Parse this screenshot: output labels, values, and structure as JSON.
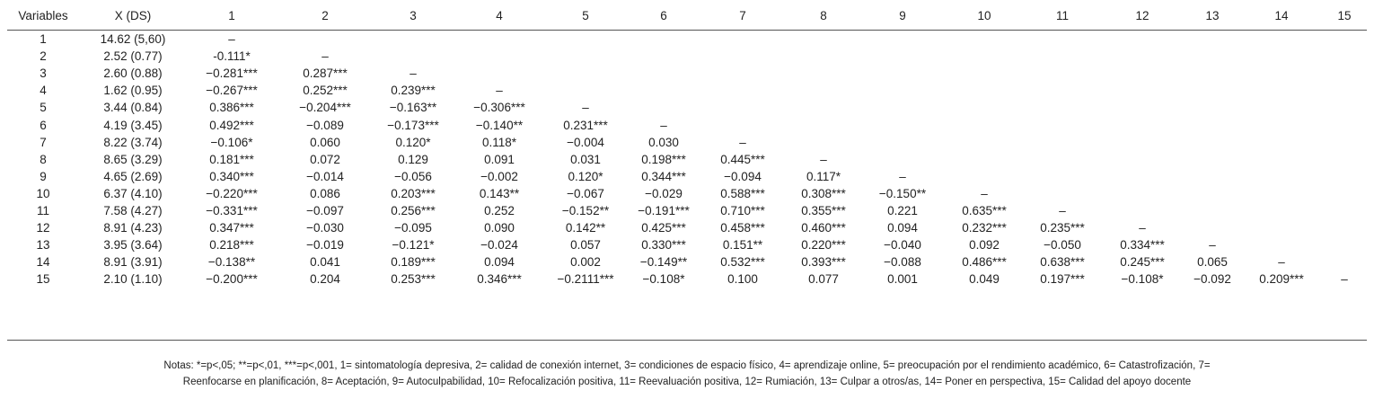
{
  "table": {
    "header": [
      "Variables",
      "X (DS)",
      "1",
      "2",
      "3",
      "4",
      "5",
      "6",
      "7",
      "8",
      "9",
      "10",
      "11",
      "12",
      "13",
      "14",
      "15"
    ],
    "rows": [
      [
        "1",
        "14.62 (5,60)",
        "–"
      ],
      [
        "2",
        "2.52 (0.77)",
        "-0.111*",
        "–"
      ],
      [
        "3",
        "2.60 (0.88)",
        "−0.281***",
        "0.287***",
        "–"
      ],
      [
        "4",
        "1.62 (0.95)",
        "−0.267***",
        "0.252***",
        "0.239***",
        "–"
      ],
      [
        "5",
        "3.44 (0.84)",
        "0.386***",
        "−0.204***",
        "−0.163**",
        "−0.306***",
        "–"
      ],
      [
        "6",
        "4.19 (3.45)",
        "0.492***",
        "−0.089",
        "−0.173***",
        "−0.140**",
        "0.231***",
        "–"
      ],
      [
        "7",
        "8.22 (3.74)",
        "−0.106*",
        "0.060",
        "0.120*",
        "0.118*",
        "−0.004",
        "0.030",
        "–"
      ],
      [
        "8",
        "8.65 (3.29)",
        "0.181***",
        "0.072",
        "0.129",
        "0.091",
        "0.031",
        "0.198***",
        "0.445***",
        "–"
      ],
      [
        "9",
        "4.65 (2.69)",
        "0.340***",
        "−0.014",
        "−0.056",
        "−0.002",
        "0.120*",
        "0.344***",
        "−0.094",
        "0.117*",
        "–"
      ],
      [
        "10",
        "6.37 (4.10)",
        "−0.220***",
        "0.086",
        "0.203***",
        "0.143**",
        "−0.067",
        "−0.029",
        "0.588***",
        "0.308***",
        "−0.150**",
        "–"
      ],
      [
        "11",
        "7.58 (4.27)",
        "−0.331***",
        "−0.097",
        "0.256***",
        "0.252",
        "−0.152**",
        "−0.191***",
        "0.710***",
        "0.355***",
        "0.221",
        "0.635***",
        "–"
      ],
      [
        "12",
        "8.91 (4.23)",
        "0.347***",
        "−0.030",
        "−0.095",
        "0.090",
        "0.142**",
        "0.425***",
        "0.458***",
        "0.460***",
        "0.094",
        "0.232***",
        "0.235***",
        "–"
      ],
      [
        "13",
        "3.95 (3.64)",
        "0.218***",
        "−0.019",
        "−0.121*",
        "−0.024",
        "0.057",
        "0.330***",
        "0.151**",
        "0.220***",
        "−0.040",
        "0.092",
        "−0.050",
        "0.334***",
        "–"
      ],
      [
        "14",
        "8.91 (3.91)",
        "−0.138**",
        "0.041",
        "0.189***",
        "0.094",
        "0.002",
        "−0.149**",
        "0.532***",
        "0.393***",
        "−0.088",
        "0.486***",
        "0.638***",
        "0.245***",
        "0.065",
        "–"
      ],
      [
        "15",
        "2.10 (1.10)",
        "−0.200***",
        "0.204",
        "0.253***",
        "0.346***",
        "−0.2111***",
        "−0.108*",
        "0.100",
        "0.077",
        "0.001",
        "0.049",
        "0.197***",
        "−0.108*",
        "−0.092",
        "0.209***",
        "–"
      ]
    ],
    "note": "Notas: *=p<,05; **=p<,01, ***=p<,001, 1= sintomatología depresiva, 2= calidad de conexión internet, 3= condiciones de espacio físico, 4= aprendizaje online, 5= preocupación por el rendimiento académico, 6= Catastrofización, 7= Reenfocarse en planificación, 8= Aceptación, 9= Autoculpabilidad, 10= Refocalización positiva, 11= Reevaluación positiva, 12= Rumiación, 13= Culpar a otros/as, 14= Poner en perspectiva, 15= Calidad del apoyo docente"
  }
}
